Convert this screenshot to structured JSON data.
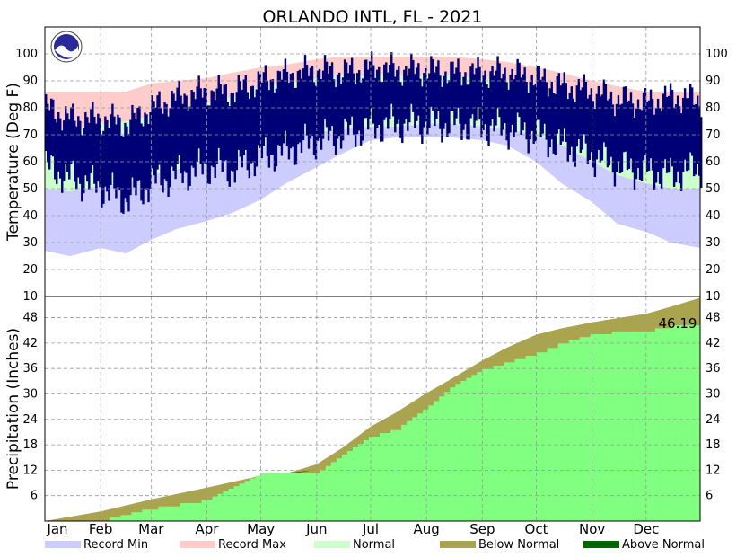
{
  "chart_data": {
    "title": "ORLANDO INTL, FL - 2021",
    "months": [
      "Jan",
      "Feb",
      "Mar",
      "Apr",
      "May",
      "Jun",
      "Jul",
      "Aug",
      "Sep",
      "Oct",
      "Nov",
      "Dec"
    ],
    "colors": {
      "record_min": "#ccccff",
      "record_max": "#ffcccc",
      "normal": "#ccffcc",
      "actual_temp": "#000077",
      "below_normal": "#aaa44f",
      "above_normal": "#006600",
      "actual_precip": "#80ff80"
    },
    "temperature": {
      "type": "area",
      "ylabel": "Temperature (Deg F)",
      "ylim": [
        10,
        110
      ],
      "yticks": [
        10,
        20,
        30,
        40,
        50,
        60,
        70,
        80,
        90,
        100
      ],
      "day_of_year": [
        1,
        15,
        32,
        46,
        60,
        74,
        91,
        105,
        121,
        135,
        152,
        166,
        182,
        196,
        213,
        227,
        244,
        258,
        274,
        288,
        305,
        319,
        335,
        349,
        365
      ],
      "record_min": [
        27,
        25,
        28,
        26,
        31,
        35,
        38,
        41,
        46,
        52,
        58,
        63,
        68,
        69,
        69,
        69,
        68,
        66,
        60,
        52,
        45,
        37,
        34,
        30,
        28
      ],
      "record_max": [
        86,
        86,
        86,
        86,
        89,
        90,
        91,
        93,
        95,
        96,
        98,
        99,
        99,
        99,
        99,
        99,
        98,
        97,
        95,
        93,
        90,
        88,
        86,
        86,
        86
      ],
      "normal_low": [
        50,
        49,
        51,
        52,
        55,
        57,
        60,
        62,
        65,
        68,
        71,
        72,
        73,
        73,
        74,
        74,
        73,
        72,
        70,
        66,
        60,
        55,
        52,
        50,
        50
      ],
      "normal_high": [
        72,
        72,
        74,
        75,
        77,
        79,
        82,
        84,
        88,
        89,
        91,
        92,
        92,
        92,
        92,
        92,
        91,
        90,
        88,
        85,
        81,
        77,
        74,
        72,
        72
      ],
      "actual_low": [
        58,
        54,
        50,
        46,
        52,
        55,
        58,
        57,
        62,
        64,
        68,
        70,
        73,
        74,
        74,
        74,
        73,
        72,
        70,
        66,
        62,
        58,
        56,
        55,
        58
      ],
      "actual_high": [
        80,
        76,
        76,
        74,
        80,
        84,
        86,
        86,
        90,
        92,
        94,
        93,
        95,
        94,
        94,
        93,
        93,
        93,
        91,
        88,
        86,
        83,
        82,
        84,
        83
      ]
    },
    "precipitation": {
      "type": "area",
      "ylabel": "Precipitation (Inches)",
      "ylim": [
        0,
        53
      ],
      "yticks": [
        6,
        12,
        18,
        24,
        30,
        36,
        42,
        48
      ],
      "day_of_year": [
        1,
        32,
        60,
        91,
        121,
        135,
        152,
        166,
        182,
        196,
        213,
        227,
        244,
        258,
        274,
        288,
        305,
        319,
        335,
        349,
        365
      ],
      "normal_cumulative": [
        0,
        2.3,
        5.1,
        7.9,
        10.7,
        11.2,
        13.4,
        17.2,
        22.3,
        25.6,
        30.2,
        33.6,
        37.9,
        41.0,
        44.0,
        45.5,
        46.9,
        47.9,
        48.9,
        50.6,
        52.7
      ],
      "actual_cumulative": [
        0,
        0.3,
        3.2,
        5.2,
        11.3,
        11.4,
        11.5,
        15.7,
        20.2,
        21.8,
        26.9,
        31.9,
        35.9,
        37.7,
        39.8,
        42.3,
        44.2,
        44.9,
        45.1,
        46.2,
        46.19
      ],
      "total_label": "46.19"
    },
    "legend": [
      {
        "key": "record_min",
        "label": "Record Min"
      },
      {
        "key": "record_max",
        "label": "Record Max"
      },
      {
        "key": "normal",
        "label": "Normal"
      },
      {
        "key": "below_normal",
        "label": "Below Normal"
      },
      {
        "key": "above_normal",
        "label": "Above Normal"
      }
    ]
  }
}
